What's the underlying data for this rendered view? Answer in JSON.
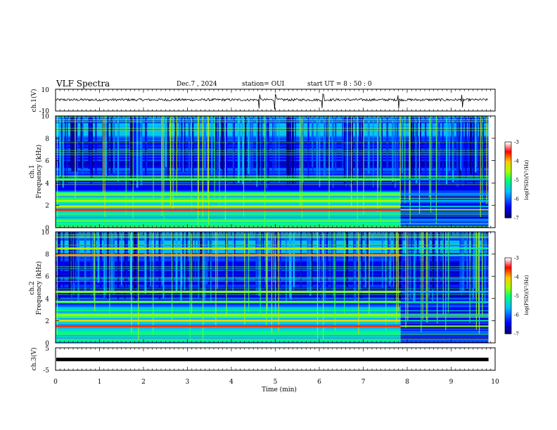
{
  "header": {
    "title": "VLF Spectra",
    "date": "Dec.7 , 2024",
    "station": "station= OUI",
    "start": "start  UT =  8 : 50 : 0"
  },
  "chart_data": [
    {
      "type": "line",
      "name": "waveform-ch1",
      "ylabel": "ch.1(V)",
      "ylim": [
        -10,
        10
      ],
      "yticks": [
        "10",
        "-10"
      ],
      "baseline": 0,
      "spikes_min": [
        4.64,
        5.0,
        6.08,
        7.8,
        9.25
      ],
      "xlim": [
        0,
        10
      ]
    },
    {
      "type": "heatmap",
      "name": "spectrogram-ch1",
      "ylabel": "ch.1\nFrequency (kHz)",
      "ylabel_line1": "ch.1",
      "ylabel_line2": "Frequency (kHz)",
      "ylim": [
        0,
        10
      ],
      "yticks": [
        "0",
        "2",
        "4",
        "6",
        "8",
        "10"
      ],
      "xlim": [
        0,
        10
      ],
      "data_end_min": 9.85,
      "change_min": 7.85,
      "bands_khz": [
        {
          "f": 1.6,
          "level": -3.6
        },
        {
          "f": 1.9,
          "level": -4.4
        },
        {
          "f": 2.4,
          "level": -4.5
        },
        {
          "f": 3.0,
          "level": -4.7
        },
        {
          "f": 4.3,
          "level": -4.7
        },
        {
          "f": 0.6,
          "level": -4.8
        }
      ],
      "colorbar": {
        "label": "log(PSD)(V²/Hz)",
        "ticks": [
          "-3",
          "-4",
          "-5",
          "-6",
          "-7"
        ],
        "range": [
          -7,
          -3
        ]
      }
    },
    {
      "type": "heatmap",
      "name": "spectrogram-ch2",
      "ylabel": "ch.2\nFrequency (kHz)",
      "ylabel_line1": "ch.2",
      "ylabel_line2": "Frequency (kHz)",
      "ylim": [
        0,
        10
      ],
      "yticks": [
        "0",
        "2",
        "4",
        "6",
        "8",
        "10"
      ],
      "xlim": [
        0,
        10
      ],
      "data_end_min": 9.85,
      "change_min": 7.85,
      "bands_khz": [
        {
          "f": 1.5,
          "level": -3.6
        },
        {
          "f": 2.0,
          "level": -4.2
        },
        {
          "f": 2.5,
          "level": -4.5
        },
        {
          "f": 3.7,
          "level": -4.6
        },
        {
          "f": 4.6,
          "level": -4.6
        },
        {
          "f": 7.9,
          "level": -3.9
        },
        {
          "f": 8.5,
          "level": -4.3
        }
      ],
      "colorbar": {
        "label": "log(PSD)(V²/Hz)",
        "ticks": [
          "-3",
          "-4",
          "-5",
          "-6",
          "-7"
        ],
        "range": [
          -7,
          -3
        ]
      }
    },
    {
      "type": "line",
      "name": "waveform-ch3",
      "ylabel": "ch.3(V)",
      "ylim": [
        -5,
        5
      ],
      "yticks": [
        "5",
        "-5"
      ],
      "level": -0.2,
      "xlim": [
        0,
        10
      ]
    }
  ],
  "xaxis": {
    "label": "Time (min)",
    "range": [
      0,
      10
    ],
    "ticks": [
      "0",
      "1",
      "2",
      "3",
      "4",
      "5",
      "6",
      "7",
      "8",
      "9",
      "10"
    ]
  },
  "colors": {
    "background": "#ffffff",
    "axes": "#000000",
    "colormap": [
      "#00008f",
      "#0000ff",
      "#00c0ff",
      "#00ff80",
      "#c0ff00",
      "#ffc000",
      "#ff0000",
      "#ffffff"
    ]
  }
}
